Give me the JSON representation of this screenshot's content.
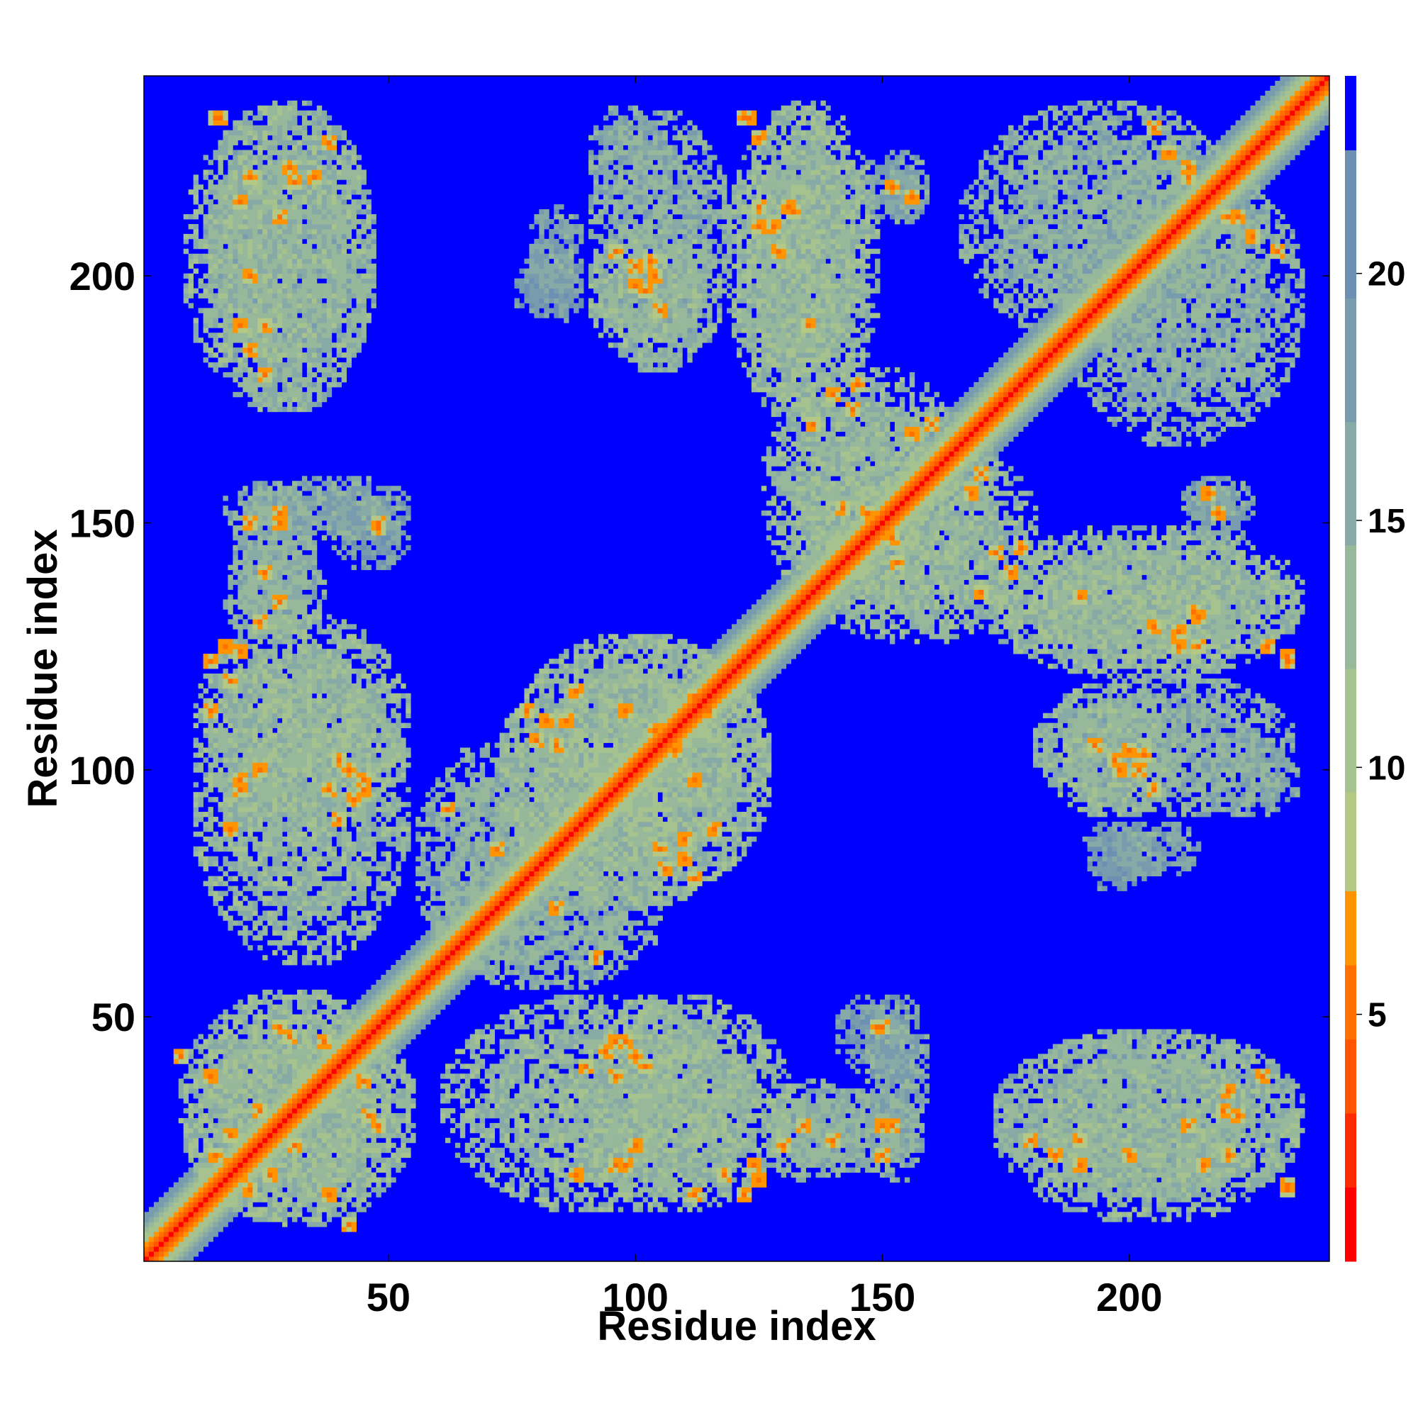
{
  "chart_data": {
    "type": "heatmap",
    "title": "",
    "xlabel": "Residue index",
    "ylabel": "Residue index",
    "n_residues": 240,
    "xlim": [
      1,
      240
    ],
    "ylim": [
      1,
      240
    ],
    "x_ticks": [
      50,
      100,
      150,
      200
    ],
    "y_ticks": [
      50,
      100,
      150,
      200
    ],
    "x_tick_labels": [
      "50",
      "100",
      "150",
      "200"
    ],
    "y_tick_labels": [
      "50",
      "100",
      "150",
      "200"
    ],
    "colorbar": {
      "range": [
        0,
        24
      ],
      "ticks": [
        5,
        10,
        15,
        20
      ],
      "tick_labels": [
        "5",
        "10",
        "15",
        "20"
      ],
      "levels": [
        {
          "from": 0,
          "to": 1.5,
          "color": "#ff0000"
        },
        {
          "from": 1.5,
          "to": 3,
          "color": "#ff2a00"
        },
        {
          "from": 3,
          "to": 4.5,
          "color": "#ff5500"
        },
        {
          "from": 4.5,
          "to": 6,
          "color": "#ff7000"
        },
        {
          "from": 6,
          "to": 7.5,
          "color": "#ff9400"
        },
        {
          "from": 7.5,
          "to": 9.5,
          "color": "#b6c984"
        },
        {
          "from": 9.5,
          "to": 12,
          "color": "#a6c28e"
        },
        {
          "from": 12,
          "to": 14.5,
          "color": "#97b89a"
        },
        {
          "from": 14.5,
          "to": 17,
          "color": "#87aaa6"
        },
        {
          "from": 17,
          "to": 19.5,
          "color": "#789cae"
        },
        {
          "from": 19.5,
          "to": 22.5,
          "color": "#6b90b2"
        },
        {
          "from": 22.5,
          "to": 24,
          "color": "#0000ff"
        }
      ]
    },
    "background_value": 24,
    "diagonal_band": [
      {
        "offset": 0,
        "value": 1
      },
      {
        "offset": 1,
        "value": 3
      },
      {
        "offset": 2,
        "value": 5
      },
      {
        "offset": 3,
        "value": 7
      },
      {
        "offset": 4,
        "value": 10
      },
      {
        "offset": 5,
        "value": 11
      },
      {
        "offset": 6,
        "value": 13
      },
      {
        "offset": 7,
        "value": 15
      },
      {
        "offset": 8,
        "value": 17
      },
      {
        "offset": 9,
        "value": 19
      }
    ],
    "contact_regions": [
      {
        "x": [
          12,
          48
        ],
        "y": [
          172,
          236
        ],
        "value": 15,
        "hotspots": [
          [
            15,
            232
          ],
          [
            22,
            220
          ],
          [
            28,
            212
          ],
          [
            35,
            220
          ],
          [
            38,
            227
          ],
          [
            20,
            190
          ],
          [
            22,
            185
          ],
          [
            31,
            219
          ]
        ]
      },
      {
        "x": [
          78,
          90
        ],
        "y": [
          196,
          215
        ],
        "value": 17,
        "hotspots": []
      },
      {
        "x": [
          90,
          120
        ],
        "y": [
          180,
          234
        ],
        "value": 15,
        "hotspots": [
          [
            96,
            205
          ],
          [
            103,
            203
          ],
          [
            100,
            198
          ]
        ]
      },
      {
        "x": [
          120,
          150
        ],
        "y": [
          170,
          236
        ],
        "value": 14,
        "hotspots": [
          [
            123,
            232
          ],
          [
            125,
            214
          ],
          [
            128,
            210
          ],
          [
            131,
            214
          ]
        ]
      },
      {
        "x": [
          150,
          158
        ],
        "y": [
          210,
          222
        ],
        "value": 17,
        "hotspots": [
          [
            156,
            216
          ]
        ]
      },
      {
        "x": [
          165,
          225
        ],
        "y": [
          185,
          236
        ],
        "value": 15,
        "hotspots": [
          [
            205,
            230
          ],
          [
            212,
            222
          ],
          [
            220,
            212
          ],
          [
            225,
            208
          ]
        ]
      },
      {
        "x": [
          18,
          36
        ],
        "y": [
          128,
          158
        ],
        "value": 15,
        "hotspots": [
          [
            22,
            150
          ],
          [
            25,
            140
          ],
          [
            28,
            152
          ]
        ]
      },
      {
        "x": [
          10,
          55
        ],
        "y": [
          86,
          132
        ],
        "value": 14,
        "hotspots": [
          [
            14,
            122
          ],
          [
            17,
            125
          ],
          [
            20,
            98
          ],
          [
            24,
            100
          ],
          [
            38,
            96
          ],
          [
            42,
            100
          ],
          [
            40,
            102
          ],
          [
            45,
            98
          ]
        ]
      },
      {
        "x": [
          38,
          55
        ],
        "y": [
          140,
          158
        ],
        "value": 18,
        "hotspots": [
          [
            48,
            150
          ]
        ]
      },
      {
        "x": [
          72,
          128
        ],
        "y": [
          72,
          128
        ],
        "value": 14,
        "hotspots": [
          [
            82,
            110
          ],
          [
            84,
            105
          ],
          [
            78,
            112
          ],
          [
            104,
            108
          ],
          [
            112,
            98
          ],
          [
            115,
            112
          ],
          [
            119,
            118
          ],
          [
            106,
            80
          ],
          [
            110,
            86
          ],
          [
            116,
            88
          ]
        ]
      },
      {
        "x": [
          125,
          170
        ],
        "y": [
          130,
          182
        ],
        "value": 14,
        "hotspots": [
          [
            136,
            170
          ],
          [
            140,
            176
          ],
          [
            144,
            173
          ],
          [
            147,
            152
          ],
          [
            150,
            149
          ],
          [
            153,
            142
          ],
          [
            160,
            160
          ],
          [
            163,
            165
          ],
          [
            168,
            156
          ],
          [
            160,
            170
          ]
        ]
      },
      {
        "x": [
          170,
          235
        ],
        "y": [
          118,
          148
        ],
        "value": 14,
        "hotspots": [
          [
            178,
            145
          ],
          [
            190,
            135
          ],
          [
            205,
            129
          ],
          [
            210,
            125
          ],
          [
            213,
            132
          ],
          [
            228,
            125
          ],
          [
            232,
            122
          ]
        ]
      },
      {
        "x": [
          182,
          210
        ],
        "y": [
          90,
          118
        ],
        "value": 14,
        "hotspots": [
          [
            193,
            105
          ],
          [
            197,
            102
          ],
          [
            200,
            104
          ],
          [
            202,
            100
          ]
        ]
      },
      {
        "x": [
          214,
          235
        ],
        "y": [
          90,
          105
        ],
        "value": 16,
        "hotspots": []
      },
      {
        "x": [
          210,
          226
        ],
        "y": [
          145,
          160
        ],
        "value": 17,
        "hotspots": [
          [
            216,
            156
          ],
          [
            218,
            152
          ]
        ]
      },
      {
        "x": [
          190,
          205
        ],
        "y": [
          75,
          90
        ],
        "value": 18,
        "hotspots": []
      },
      {
        "x": [
          7,
          55
        ],
        "y": [
          8,
          56
        ],
        "value": 14,
        "hotspots": [
          [
            14,
            38
          ],
          [
            18,
            20
          ],
          [
            22,
            15
          ],
          [
            26,
            18
          ],
          [
            31,
            24
          ],
          [
            34,
            33
          ],
          [
            37,
            45
          ],
          [
            42,
            8
          ],
          [
            46,
            30
          ],
          [
            48,
            28
          ]
        ]
      },
      {
        "x": [
          60,
          125
        ],
        "y": [
          10,
          55
        ],
        "value": 14,
        "hotspots": [
          [
            90,
            40
          ],
          [
            94,
            43
          ],
          [
            96,
            45
          ],
          [
            88,
            18
          ],
          [
            96,
            20
          ],
          [
            112,
            14
          ],
          [
            118,
            18
          ],
          [
            124,
            20
          ]
        ]
      },
      {
        "x": [
          125,
          146
        ],
        "y": [
          16,
          38
        ],
        "value": 15,
        "hotspots": [
          [
            130,
            24
          ],
          [
            134,
            28
          ]
        ]
      },
      {
        "x": [
          146,
          160
        ],
        "y": [
          16,
          56
        ],
        "value": 16,
        "hotspots": [
          [
            149,
            48
          ],
          [
            150,
            28
          ]
        ]
      },
      {
        "x": [
          172,
          235
        ],
        "y": [
          8,
          48
        ],
        "value": 14,
        "hotspots": [
          [
            180,
            25
          ],
          [
            190,
            25
          ],
          [
            200,
            22
          ],
          [
            215,
            20
          ],
          [
            222,
            30
          ],
          [
            232,
            16
          ]
        ]
      },
      {
        "x": [
          58,
          106
        ],
        "y": [
          55,
          88
        ],
        "value": 15,
        "hotspots": [
          [
            78,
            76
          ],
          [
            84,
            72
          ],
          [
            92,
            62
          ]
        ]
      }
    ]
  }
}
